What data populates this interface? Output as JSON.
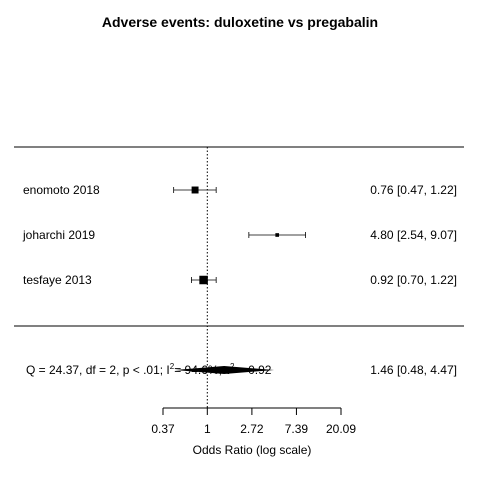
{
  "chart_data": {
    "type": "forest",
    "title": "Adverse events: duloxetine vs pregabalin",
    "xlabel": "Odds Ratio (log scale)",
    "scale": "log",
    "xlim": [
      0.37,
      20.09
    ],
    "reference_line": 1,
    "ticks": [
      {
        "value": 0.37,
        "label": "0.37"
      },
      {
        "value": 1,
        "label": "1"
      },
      {
        "value": 2.72,
        "label": "2.72"
      },
      {
        "value": 7.39,
        "label": "7.39"
      },
      {
        "value": 20.09,
        "label": "20.09"
      }
    ],
    "studies": [
      {
        "label": "enomoto 2018",
        "or": 0.76,
        "ci": [
          0.47,
          1.22
        ],
        "ci_text": "0.76 [0.47, 1.22]",
        "weight": 0.36
      },
      {
        "label": "joharchi 2019",
        "or": 4.8,
        "ci": [
          2.54,
          9.07
        ],
        "ci_text": "4.80 [2.54, 9.07]",
        "weight": 0.1
      },
      {
        "label": "tesfaye 2013",
        "or": 0.92,
        "ci": [
          0.7,
          1.22
        ],
        "ci_text": "0.92 [0.70, 1.22]",
        "weight": 0.54
      }
    ],
    "summary": {
      "or": 1.46,
      "ci": [
        0.48,
        4.47
      ],
      "ci_text": "1.46 [0.48, 4.47]",
      "heterogeneity": {
        "q_text": "Q = 24.37, df = 2, p < .01; I",
        "sup1": "2",
        "mid_text": "= 94.6%, τ",
        "sup2": "2",
        "tail_text": " = 0.92"
      }
    }
  }
}
